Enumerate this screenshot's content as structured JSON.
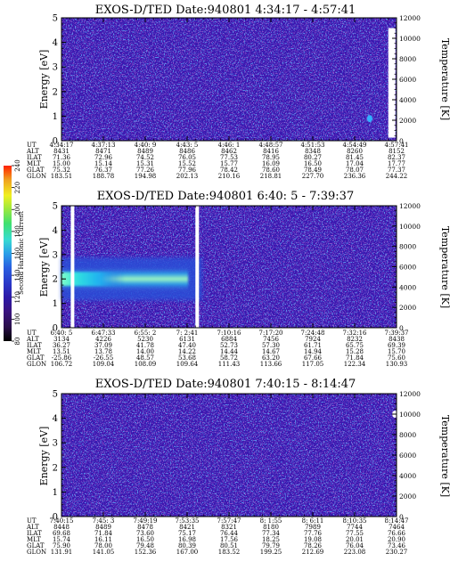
{
  "chart_data": [
    {
      "type": "heatmap",
      "title": "EXOS-D/TED   Date:940801  4:34:17 - 4:57:41",
      "ylabel": "Energy [eV]",
      "ylabel_right": "Temperature [K]",
      "ylim": [
        0,
        5
      ],
      "yticks": [
        "0",
        "1",
        "2",
        "3",
        "4",
        "5"
      ],
      "ylim_right": [
        0,
        12000
      ],
      "yticks_right": [
        "0",
        "2000",
        "4000",
        "6000",
        "8000",
        "10000",
        "12000"
      ],
      "ephemeris": {
        "labels": [
          "UT",
          "ALT",
          "ILAT",
          "MLT",
          "GLAT",
          "GLON"
        ],
        "columns": [
          [
            "4:34:17",
            "8431",
            "71.36",
            "15.00",
            "75.32",
            "183.51"
          ],
          [
            "4:37:13",
            "8471",
            "72.96",
            "15.14",
            "76.37",
            "188.78"
          ],
          [
            "4:40: 9",
            "8489",
            "74.52",
            "15.31",
            "77.26",
            "194.98"
          ],
          [
            "4:43: 5",
            "8486",
            "76.05",
            "15.52",
            "77.96",
            "202.13"
          ],
          [
            "4:46: 1",
            "8462",
            "77.53",
            "15.77",
            "78.42",
            "210.16"
          ],
          [
            "4:48:57",
            "8416",
            "78.95",
            "16.09",
            "78.60",
            "218.81"
          ],
          [
            "4:51:53",
            "8348",
            "80.27",
            "16.50",
            "78.49",
            "227.70"
          ],
          [
            "4:54:49",
            "8260",
            "81.45",
            "17.04",
            "78.07",
            "236.36"
          ],
          [
            "4:57:41",
            "8152",
            "82.37",
            "17.77",
            "77.37",
            "244.22"
          ]
        ]
      },
      "features": [
        {
          "kind": "temperature-trace",
          "x_fraction": 0.986,
          "temperature_k": [
            300,
            11000
          ]
        },
        {
          "kind": "spot",
          "x_fraction": 0.92,
          "energy_ev": 0.9,
          "level": 150
        }
      ]
    },
    {
      "type": "heatmap",
      "title": "EXOS-D/TED   Date:940801  6:40: 5 - 7:39:37",
      "ylabel": "Energy [eV]",
      "ylabel_right": "Temperature [K]",
      "ylim": [
        0,
        5
      ],
      "yticks": [
        "0",
        "1",
        "2",
        "3",
        "4",
        "5"
      ],
      "ylim_right": [
        0,
        12000
      ],
      "yticks_right": [
        "0",
        "2000",
        "4000",
        "6000",
        "8000",
        "10000",
        "12000"
      ],
      "ephemeris": {
        "labels": [
          "UT",
          "ALT",
          "ILAT",
          "MLT",
          "GLAT",
          "GLON"
        ],
        "columns": [
          [
            "6:40: 5",
            "3134",
            "36.27",
            "13.51",
            "-25.86",
            "106.72"
          ],
          [
            "6:47:33",
            "4226",
            "37.09",
            "13.78",
            "-26.55",
            "109.04"
          ],
          [
            "6:55: 2",
            "5230",
            "41.78",
            "14.00",
            "48.57",
            "108.09"
          ],
          [
            "7: 2:41",
            "6131",
            "47.40",
            "14.22",
            "53.68",
            "109.64"
          ],
          [
            "7:10:16",
            "6884",
            "52.73",
            "14.44",
            "58.72",
            "111.43"
          ],
          [
            "7:17:20",
            "7456",
            "57.30",
            "14.67",
            "63.20",
            "113.66"
          ],
          [
            "7:24:48",
            "7924",
            "61.71",
            "14.94",
            "67.66",
            "117.05"
          ],
          [
            "7:32:16",
            "8232",
            "65.75",
            "15.28",
            "71.84",
            "122.34"
          ],
          [
            "7:39:37",
            "8438",
            "69.39",
            "15.70",
            "75.60",
            "130.93"
          ]
        ]
      },
      "features": [
        {
          "kind": "band",
          "x_fraction": [
            0.0,
            0.42
          ],
          "energy_ev_center": 2.0,
          "energy_ev_halfwidth": 0.55,
          "peak_level": 170
        },
        {
          "kind": "data-gap",
          "x_fraction": 0.033
        },
        {
          "kind": "data-gap",
          "x_fraction": 0.405
        }
      ]
    },
    {
      "type": "heatmap",
      "title": "EXOS-D/TED   Date:940801  7:40:15 - 8:14:47",
      "ylabel": "Energy [eV]",
      "ylabel_right": "Temperature [K]",
      "ylim": [
        0,
        5
      ],
      "yticks": [
        "0",
        "1",
        "2",
        "3",
        "4",
        "5"
      ],
      "ylim_right": [
        0,
        12000
      ],
      "yticks_right": [
        "0",
        "2000",
        "4000",
        "6000",
        "8000",
        "10000",
        "12000"
      ],
      "ephemeris": {
        "labels": [
          "UT",
          "ALT",
          "ILAT",
          "MLT",
          "GLAT",
          "GLON"
        ],
        "columns": [
          [
            "7:40:15",
            "8448",
            "69.68",
            "15.74",
            "75.90",
            "131.91"
          ],
          [
            "7:45: 3",
            "8489",
            "71.84",
            "16.11",
            "78.00",
            "141.05"
          ],
          [
            "7:49:19",
            "8478",
            "73.60",
            "16.50",
            "79.48",
            "152.36"
          ],
          [
            "7:53:35",
            "8421",
            "75.17",
            "16.98",
            "80.39",
            "167.00"
          ],
          [
            "7:57:47",
            "8321",
            "76.44",
            "17.56",
            "80.51",
            "183.52"
          ],
          [
            "8: 1:55",
            "8180",
            "77.34",
            "18.25",
            "79.79",
            "199.25"
          ],
          [
            "8: 6:11",
            "7989",
            "77.76",
            "19.08",
            "78.26",
            "212.69"
          ],
          [
            "8:10:35",
            "7744",
            "77.55",
            "20.01",
            "76.04",
            "223.08"
          ],
          [
            "8:14:47",
            "7464",
            "76.66",
            "20.90",
            "73.46",
            "230.27"
          ]
        ]
      },
      "features": [
        {
          "kind": "spot",
          "x_fraction": 0.995,
          "temperature_k": 10000,
          "level": 240
        }
      ]
    }
  ],
  "colorbar": {
    "label": "Second Harmonic Current",
    "ticks": [
      "80",
      "100",
      "120",
      "140",
      "160",
      "180",
      "200",
      "220",
      "240"
    ],
    "colors": [
      "#000000",
      "#2a0f4a",
      "#3a1380",
      "#2c1aa8",
      "#2a38c8",
      "#2a60e0",
      "#2aa0e8",
      "#38dcd0",
      "#40e070",
      "#98e840",
      "#f0f020",
      "#f0a020",
      "#ff2000"
    ]
  }
}
